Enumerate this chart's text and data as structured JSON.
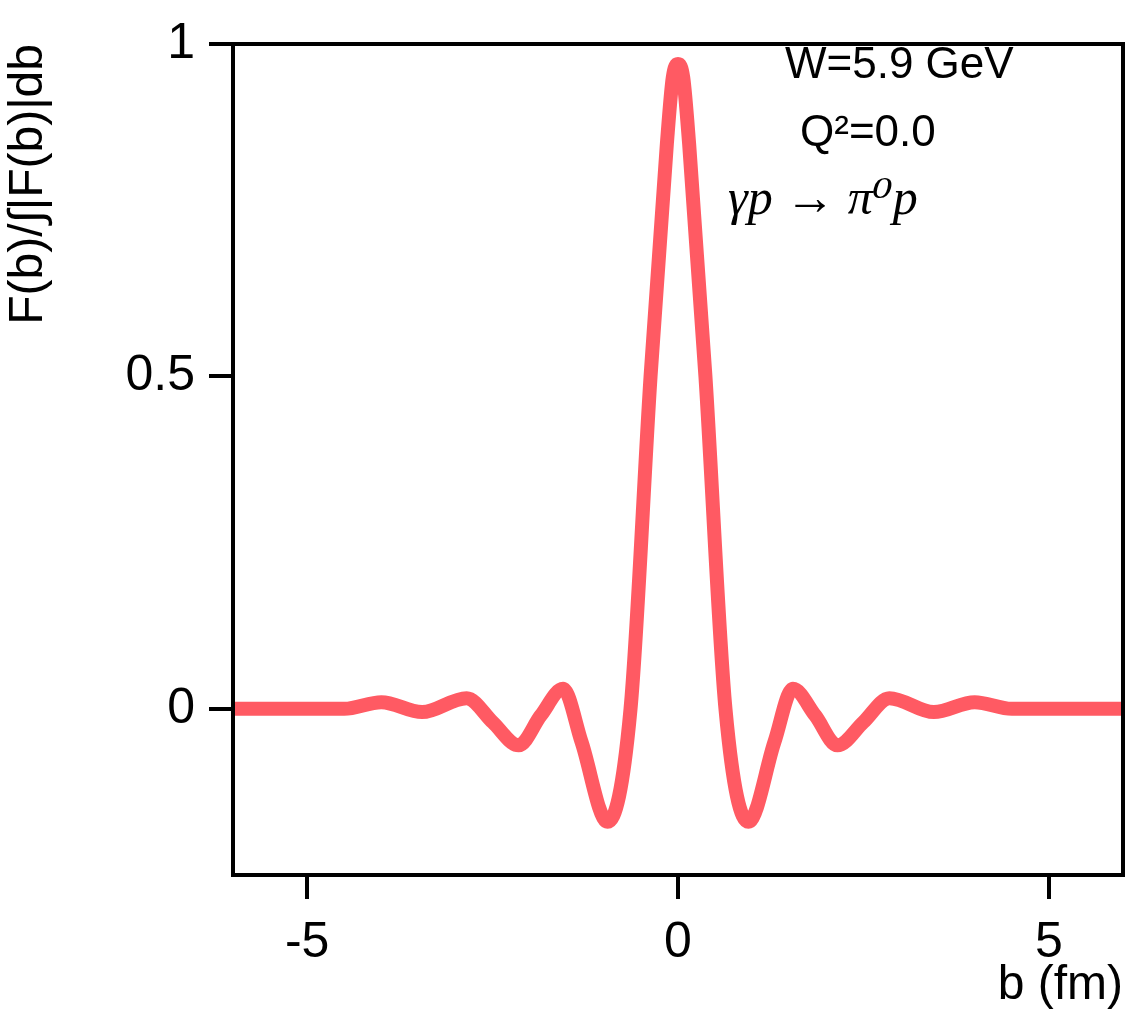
{
  "chart_data": {
    "type": "line",
    "xlabel": "b (fm)",
    "ylabel": "F(b)/∫|F(b)|db",
    "annotations": [
      "W=5.9 GeV",
      "Q²=0.0",
      "γp → π⁰p"
    ],
    "x": [
      -6,
      -5,
      -4.5,
      -4,
      -3.45,
      -2.85,
      -2.5,
      -2.15,
      -1.85,
      -1.55,
      -1.3,
      -0.95,
      -0.64,
      -0.37,
      -0.15,
      -0.07,
      0,
      0.07,
      0.15,
      0.37,
      0.64,
      0.95,
      1.3,
      1.55,
      1.85,
      2.15,
      2.5,
      2.85,
      3.45,
      4,
      4.5,
      5,
      6
    ],
    "series": [
      {
        "color": "#ff5a63",
        "values": [
          0,
          0,
          0,
          0.01,
          -0.005,
          0.016,
          -0.02,
          -0.055,
          -0.01,
          0.03,
          -0.05,
          -0.17,
          0,
          0.5,
          0.85,
          0.95,
          0.97,
          0.95,
          0.85,
          0.5,
          0,
          -0.17,
          -0.05,
          0.03,
          -0.01,
          -0.055,
          -0.02,
          0.016,
          -0.005,
          0.01,
          0,
          0,
          0
        ]
      }
    ],
    "xlim": [
      -6,
      6
    ],
    "xticks": [
      -5,
      0,
      5
    ],
    "ylim": [
      -0.25,
      1
    ],
    "yticks": [
      0,
      0.5,
      1
    ],
    "grid": false,
    "legend": false,
    "marker": "none",
    "line_style": "solid"
  }
}
